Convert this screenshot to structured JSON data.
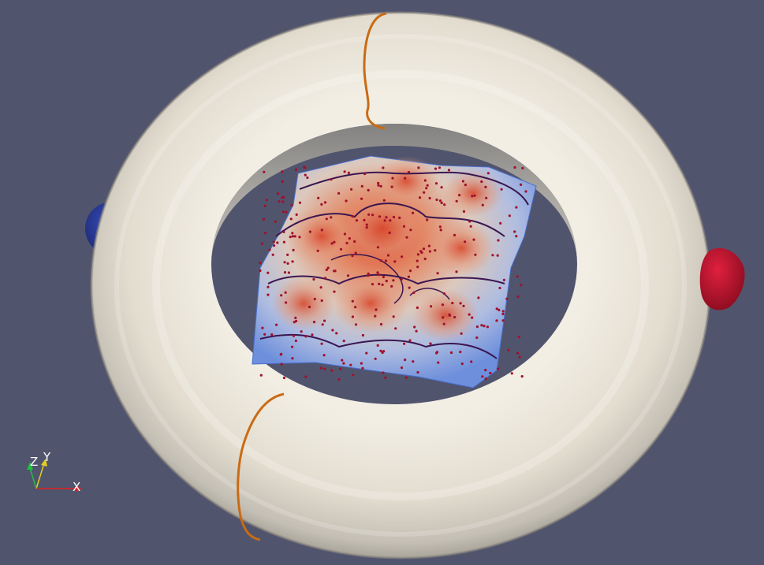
{
  "viewport": {
    "background": "#51546d"
  },
  "scene": {
    "torus_color": "#ece7dc",
    "contour_color": "#c96b14",
    "surface_low_color": "#5b7fd6",
    "surface_high_color": "#e44b30",
    "point_color": "#a0102a",
    "left_blob_color": "#27399a",
    "right_blob_color": "#b5102a"
  },
  "orientation_axes": {
    "x_label": "X",
    "y_label": "Y",
    "z_label": "Z",
    "x_color": "#e02020",
    "y_color": "#e5d020",
    "z_color": "#20c040"
  }
}
